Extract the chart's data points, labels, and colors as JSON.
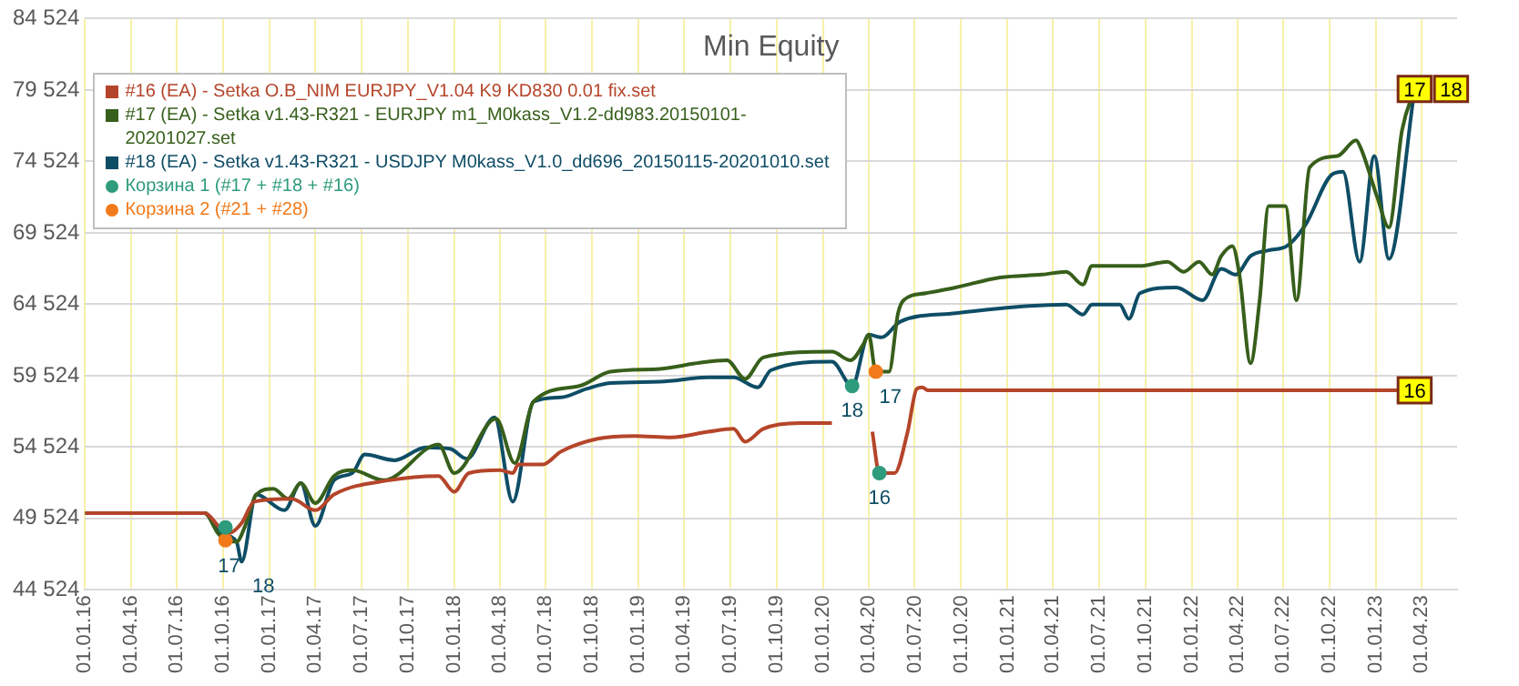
{
  "chart_data": {
    "type": "line",
    "title": "Min Equity",
    "legend": "top left",
    "grid": true,
    "xlim": [
      "2016-01-01",
      "2023-06-10"
    ],
    "xticks": [
      {
        "value": "2016-01-01",
        "label": "01.01.16"
      },
      {
        "value": "2016-04-01",
        "label": "01.04.16"
      },
      {
        "value": "2016-07-01",
        "label": "01.07.16"
      },
      {
        "value": "2016-10-01",
        "label": "01.10.16"
      },
      {
        "value": "2017-01-01",
        "label": "01.01.17"
      },
      {
        "value": "2017-04-01",
        "label": "01.04.17"
      },
      {
        "value": "2017-07-01",
        "label": "01.07.17"
      },
      {
        "value": "2017-10-01",
        "label": "01.10.17"
      },
      {
        "value": "2018-01-01",
        "label": "01.01.18"
      },
      {
        "value": "2018-04-01",
        "label": "01.04.18"
      },
      {
        "value": "2018-07-01",
        "label": "01.07.18"
      },
      {
        "value": "2018-10-01",
        "label": "01.10.18"
      },
      {
        "value": "2019-01-01",
        "label": "01.01.19"
      },
      {
        "value": "2019-04-01",
        "label": "01.04.19"
      },
      {
        "value": "2019-07-01",
        "label": "01.07.19"
      },
      {
        "value": "2019-10-01",
        "label": "01.10.19"
      },
      {
        "value": "2020-01-01",
        "label": "01.01.20"
      },
      {
        "value": "2020-04-01",
        "label": "01.04.20"
      },
      {
        "value": "2020-07-01",
        "label": "01.07.20"
      },
      {
        "value": "2020-10-01",
        "label": "01.10.20"
      },
      {
        "value": "2021-01-01",
        "label": "01.01.21"
      },
      {
        "value": "2021-04-01",
        "label": "01.04.21"
      },
      {
        "value": "2021-07-01",
        "label": "01.07.21"
      },
      {
        "value": "2021-10-01",
        "label": "01.10.21"
      },
      {
        "value": "2022-01-01",
        "label": "01.01.22"
      },
      {
        "value": "2022-04-01",
        "label": "01.04.22"
      },
      {
        "value": "2022-07-01",
        "label": "01.07.22"
      },
      {
        "value": "2022-10-01",
        "label": "01.10.22"
      },
      {
        "value": "2023-01-01",
        "label": "01.01.23"
      },
      {
        "value": "2023-04-01",
        "label": "01.04.23"
      }
    ],
    "ylim": [
      44524,
      84524
    ],
    "yticks": [
      {
        "value": 44524,
        "label": "44 524"
      },
      {
        "value": 49524,
        "label": "49 524"
      },
      {
        "value": 54524,
        "label": "54 524"
      },
      {
        "value": 59524,
        "label": "59 524"
      },
      {
        "value": 64524,
        "label": "64 524"
      },
      {
        "value": 69524,
        "label": "69 524"
      },
      {
        "value": 74524,
        "label": "74 524"
      },
      {
        "value": 79524,
        "label": "79 524"
      },
      {
        "value": 84524,
        "label": "84 524"
      }
    ],
    "series": [
      {
        "name": "#16 (EA) - Setka O.B_NIM EURJPY_V1.04 K9 KD830 0.01 fix.set",
        "color": "#b5452a",
        "x": [
          "2016-01-01",
          "2016-08-25",
          "2016-09-24",
          "2016-10-12",
          "2016-11-06",
          "2016-12-01",
          "2017-02-13",
          "2017-04-01",
          "2017-05-08",
          "2017-08-25",
          "2017-12-01",
          "2018-01-01",
          "2018-01-30",
          "2018-04-01",
          "2018-04-27",
          "2018-05-08",
          "2018-06-25",
          "2018-07-31",
          "2018-10-12",
          "2018-12-24",
          "2019-03-07",
          "2019-05-19",
          "2019-07-08",
          "2019-07-31",
          "2019-09-05",
          "2019-11-17",
          "2020-01-19",
          "2020-02-01",
          "2020-04-08",
          "2020-04-22",
          "2020-05-22",
          "2020-06-17",
          "2020-07-05",
          "2020-07-16",
          "2020-07-27",
          "2023-03-18"
        ],
        "values": [
          49900,
          49900,
          48900,
          48500,
          49200,
          50700,
          50900,
          50100,
          51200,
          52200,
          52500,
          51400,
          52700,
          52900,
          52700,
          53300,
          53300,
          54200,
          55100,
          55300,
          55200,
          55600,
          55800,
          54900,
          55800,
          56200,
          56200,
          null,
          55600,
          52700,
          52700,
          55600,
          58600,
          58700,
          58500,
          58500
        ]
      },
      {
        "name": "#17 (EA) - Setka v1.43-R321 - EURJPY m1_M0kass_V1.2-dd983.20150101-20201027.set",
        "color": "#375f1b",
        "x": [
          "2016-01-01",
          "2016-08-25",
          "2016-09-20",
          "2016-10-12",
          "2016-10-27",
          "2016-11-13",
          "2016-12-05",
          "2017-01-08",
          "2017-02-06",
          "2017-03-03",
          "2017-04-01",
          "2017-05-08",
          "2017-06-13",
          "2017-08-15",
          "2017-12-01",
          "2018-01-01",
          "2018-03-25",
          "2018-05-01",
          "2018-06-07",
          "2018-09-06",
          "2018-11-06",
          "2019-02-13",
          "2019-04-27",
          "2019-06-25",
          "2019-07-31",
          "2019-09-05",
          "2020-01-19",
          "2020-02-25",
          "2020-03-21",
          "2020-04-01",
          "2020-04-15",
          "2020-05-11",
          "2020-05-29",
          "2020-06-09",
          "2020-07-23",
          "2020-09-20",
          "2020-12-17",
          "2021-03-10",
          "2021-04-27",
          "2021-05-30",
          "2021-06-17",
          "2021-09-20",
          "2021-11-13",
          "2021-12-16",
          "2022-01-15",
          "2022-02-10",
          "2022-02-28",
          "2022-03-22",
          "2022-04-05",
          "2022-04-27",
          "2022-05-15",
          "2022-06-02",
          "2022-07-05",
          "2022-07-27",
          "2022-08-22",
          "2022-10-16",
          "2022-11-22",
          "2022-12-02",
          "2023-01-04",
          "2023-01-26",
          "2023-02-21",
          "2023-03-18"
        ],
        "values": [
          49900,
          49900,
          48500,
          47900,
          47900,
          49000,
          51200,
          51600,
          50900,
          52000,
          50600,
          52500,
          52900,
          52200,
          54700,
          52700,
          56500,
          53400,
          57700,
          58800,
          59800,
          60000,
          60400,
          60600,
          59300,
          60800,
          61200,
          60600,
          61700,
          62400,
          59800,
          59800,
          63900,
          64800,
          65300,
          65700,
          66400,
          66600,
          66800,
          65900,
          67200,
          67200,
          67500,
          66800,
          67500,
          66600,
          67900,
          68600,
          66600,
          60400,
          64800,
          71400,
          71400,
          64800,
          74100,
          74900,
          76000,
          75400,
          71900,
          69900,
          76700,
          79600
        ]
      },
      {
        "name": "#18 (EA) - Setka v1.43-R321 - USDJPY M0kass_V1.0_dd696_20150115-20201010.set",
        "color": "#0e4d66",
        "x": [
          "2016-01-01",
          "2016-08-25",
          "2016-09-24",
          "2016-10-27",
          "2016-11-06",
          "2016-12-05",
          "2017-01-30",
          "2017-03-03",
          "2017-04-01",
          "2017-05-08",
          "2017-06-13",
          "2017-07-08",
          "2017-09-05",
          "2017-11-06",
          "2017-12-24",
          "2018-01-26",
          "2018-03-22",
          "2018-04-27",
          "2018-06-07",
          "2018-07-31",
          "2018-09-20",
          "2018-11-06",
          "2019-02-13",
          "2019-05-19",
          "2019-07-08",
          "2019-08-25",
          "2019-09-20",
          "2020-01-19",
          "2020-02-28",
          "2020-04-01",
          "2020-04-26",
          "2020-06-02",
          "2020-09-20",
          "2021-02-13",
          "2021-04-27",
          "2021-05-30",
          "2021-06-17",
          "2021-08-11",
          "2021-08-29",
          "2021-09-20",
          "2021-12-01",
          "2022-01-22",
          "2022-02-28",
          "2022-03-29",
          "2022-04-27",
          "2022-06-02",
          "2022-07-08",
          "2022-08-14",
          "2022-10-05",
          "2022-10-27",
          "2022-11-29",
          "2022-12-28",
          "2023-01-26",
          "2023-03-18"
        ],
        "values": [
          49900,
          49900,
          48500,
          47900,
          46500,
          51200,
          50100,
          52000,
          49000,
          52200,
          52700,
          54000,
          53600,
          54500,
          54400,
          53700,
          56600,
          50700,
          57700,
          58000,
          58600,
          59000,
          59100,
          59400,
          59400,
          58700,
          59900,
          60500,
          58800,
          62400,
          62200,
          63300,
          63900,
          64400,
          64500,
          63800,
          64500,
          64500,
          63500,
          65300,
          65700,
          64800,
          67000,
          66600,
          67900,
          68300,
          68600,
          70100,
          73600,
          73800,
          67500,
          74900,
          67700,
          79600
        ]
      },
      {
        "name": "Корзина 1 (#17 + #18 + #16)",
        "type": "scatter",
        "color": "#2e9b7c",
        "x": [
          "2016-10-05",
          "2020-02-28",
          "2020-04-22"
        ],
        "values": [
          48900,
          58800,
          52700
        ]
      },
      {
        "name": "Корзина 2 (#21 + #28)",
        "type": "scatter",
        "color": "#f27a1a",
        "x": [
          "2016-10-05",
          "2020-04-15"
        ],
        "values": [
          48000,
          59800
        ]
      }
    ],
    "annotations": [
      {
        "text": "17",
        "x": "2016-10-12",
        "y": 47900
      },
      {
        "text": "18",
        "x": "2016-11-06",
        "y": 46500
      },
      {
        "text": "18",
        "x": "2020-02-28",
        "y": 58800
      },
      {
        "text": "17",
        "x": "2020-04-15",
        "y": 59800
      },
      {
        "text": "16",
        "x": "2020-04-22",
        "y": 52700
      },
      {
        "text": "17",
        "x": "2023-03-18",
        "y": 79600
      },
      {
        "text": "18",
        "x": "2023-03-18",
        "y": 79600
      },
      {
        "text": "16",
        "x": "2023-03-18",
        "y": 58500
      }
    ]
  }
}
